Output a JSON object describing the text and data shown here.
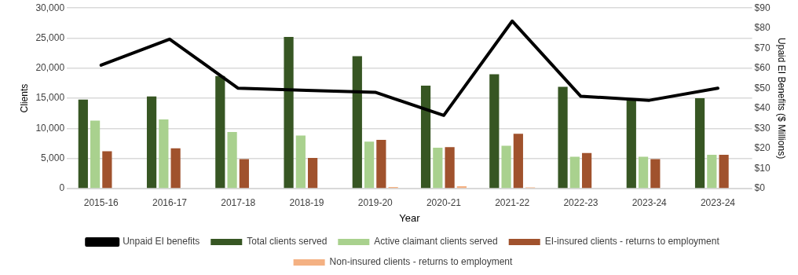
{
  "chart_data": {
    "type": "bar",
    "xlabel": "Year",
    "ylabel": "Clients",
    "y2label": "Upaid EI Benefits ($ Millions)",
    "categories": [
      "2015-16",
      "2016-17",
      "2017-18",
      "2018-19",
      "2019-20",
      "2020-21",
      "2021-22",
      "2022-23",
      "2023-24",
      "2023-24"
    ],
    "series": [
      {
        "name": "Total clients served",
        "color": "#375623",
        "values": [
          14800,
          15300,
          18700,
          25200,
          22000,
          17100,
          19000,
          16900,
          14800,
          15000
        ]
      },
      {
        "name": "Active claimant clients served",
        "color": "#a9d18e",
        "values": [
          11300,
          11500,
          9400,
          8800,
          7800,
          6800,
          7100,
          5300,
          5300,
          5600
        ]
      },
      {
        "name": "EI-insured clients - returns to employment",
        "color": "#a0522d",
        "values": [
          6200,
          6700,
          4900,
          5100,
          8100,
          6900,
          9100,
          5900,
          4900,
          5600
        ]
      },
      {
        "name": "Non-insured clients - returns to employment",
        "color": "#f4b183",
        "values": [
          0,
          0,
          0,
          0,
          250,
          400,
          200,
          100,
          0,
          100
        ]
      },
      {
        "name": "Unpaid EI benefits",
        "type": "line",
        "axis": "y2",
        "color": "#000000",
        "values": [
          61.5,
          74.5,
          50,
          49,
          48,
          36.5,
          83.5,
          46,
          44,
          50
        ]
      }
    ],
    "ylim": [
      0,
      30000
    ],
    "yticks": [
      {
        "value": 0,
        "label": "0"
      },
      {
        "value": 5000,
        "label": "5,000"
      },
      {
        "value": 10000,
        "label": "10,000"
      },
      {
        "value": 15000,
        "label": "15,000"
      },
      {
        "value": 20000,
        "label": "20,000"
      },
      {
        "value": 25000,
        "label": "25,000"
      },
      {
        "value": 30000,
        "label": "30,000"
      }
    ],
    "y2lim": [
      0,
      90
    ],
    "y2ticks": [
      {
        "value": 0,
        "label": "$0"
      },
      {
        "value": 10,
        "label": "$10"
      },
      {
        "value": 20,
        "label": "$20"
      },
      {
        "value": 30,
        "label": "$30"
      },
      {
        "value": 40,
        "label": "$40"
      },
      {
        "value": 50,
        "label": "$50"
      },
      {
        "value": 60,
        "label": "$60"
      },
      {
        "value": 70,
        "label": "$70"
      },
      {
        "value": 80,
        "label": "$80"
      },
      {
        "value": 90,
        "label": "$90"
      }
    ],
    "grid": "y",
    "legend": "bottom",
    "marker": "none"
  }
}
